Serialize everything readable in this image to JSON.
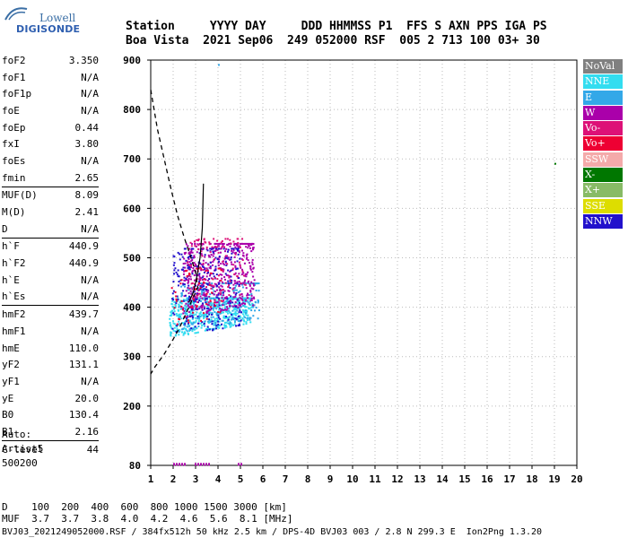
{
  "logo": {
    "line1": "Lowell",
    "line2": "DIGISONDE"
  },
  "header": {
    "line1": "Station     YYYY DAY     DDD HHMMSS P1  FFS S AXN PPS IGA PS",
    "line2": "Boa Vista  2021 Sep06  249 052000 RSF  005 2 713 100 03+ 30"
  },
  "params": [
    {
      "name": "foF2",
      "value": "3.350"
    },
    {
      "name": "foF1",
      "value": "N/A"
    },
    {
      "name": "foF1p",
      "value": "N/A"
    },
    {
      "name": "foE",
      "value": "N/A"
    },
    {
      "name": "foEp",
      "value": "0.44"
    },
    {
      "name": "fxI",
      "value": "3.80"
    },
    {
      "name": "foEs",
      "value": "N/A"
    },
    {
      "name": "fmin",
      "value": "2.65"
    },
    {
      "name": "MUF(D)",
      "value": "8.09",
      "sep": true
    },
    {
      "name": "M(D)",
      "value": "2.41"
    },
    {
      "name": "D",
      "value": "N/A"
    },
    {
      "name": "h`F",
      "value": "440.9",
      "sep": true
    },
    {
      "name": "h`F2",
      "value": "440.9"
    },
    {
      "name": "h`E",
      "value": "N/A"
    },
    {
      "name": "h`Es",
      "value": "N/A"
    },
    {
      "name": "hmF2",
      "value": "439.7",
      "sep": true
    },
    {
      "name": "hmF1",
      "value": "N/A"
    },
    {
      "name": "hmE",
      "value": "110.0"
    },
    {
      "name": "yF2",
      "value": "131.1"
    },
    {
      "name": "yF1",
      "value": "N/A"
    },
    {
      "name": "yE",
      "value": "20.0"
    },
    {
      "name": "B0",
      "value": "130.4"
    },
    {
      "name": "B1",
      "value": "2.16"
    },
    {
      "name": "C-level",
      "value": "44",
      "sep": true
    }
  ],
  "auto": [
    "Auto:",
    "Artist5",
    "500200"
  ],
  "legend": [
    {
      "label": "NoVal",
      "color": "#808080"
    },
    {
      "label": "NNE",
      "color": "#33ddf0"
    },
    {
      "label": "E",
      "color": "#33a8e8"
    },
    {
      "label": "W",
      "color": "#aa00aa"
    },
    {
      "label": "Vo-",
      "color": "#dd1177"
    },
    {
      "label": "Vo+",
      "color": "#ee0033"
    },
    {
      "label": "SSW",
      "color": "#f4aaaa"
    },
    {
      "label": "X-",
      "color": "#007700"
    },
    {
      "label": "X+",
      "color": "#88bb66"
    },
    {
      "label": "SSE",
      "color": "#dddd00"
    },
    {
      "label": "NNW",
      "color": "#2211cc"
    }
  ],
  "footer": {
    "d_row": "D    100  200  400  600  800 1000 1500 3000 [km]",
    "muf_row": "MUF  3.7  3.7  3.8  4.0  4.2  4.6  5.6  8.1 [MHz]",
    "info": "BVJ03_2021249052000.RSF / 384fx512h 50 kHz 2.5 km / DPS-4D BVJ03 003 / 2.8 N 299.3 E  Ion2Png 1.3.20"
  },
  "chart_data": {
    "type": "scatter",
    "title": "",
    "xlabel": "",
    "ylabel": "",
    "xlim": [
      1,
      20
    ],
    "ylim": [
      80,
      900
    ],
    "xticks": [
      1,
      2,
      3,
      4,
      5,
      6,
      7,
      8,
      9,
      10,
      11,
      12,
      13,
      14,
      15,
      16,
      17,
      18,
      19,
      20
    ],
    "yticks": [
      80,
      200,
      300,
      400,
      500,
      600,
      700,
      800,
      900
    ],
    "grid": true,
    "legend_position": "right",
    "dashed_curve": [
      [
        1.0,
        840
      ],
      [
        1.3,
        760
      ],
      [
        1.6,
        700
      ],
      [
        1.9,
        640
      ],
      [
        2.2,
        585
      ],
      [
        2.5,
        540
      ],
      [
        2.8,
        500
      ],
      [
        3.0,
        470
      ],
      [
        3.1,
        440
      ],
      [
        2.9,
        420
      ],
      [
        2.6,
        390
      ],
      [
        2.3,
        360
      ],
      [
        2.0,
        335
      ],
      [
        1.6,
        305
      ],
      [
        1.2,
        280
      ],
      [
        1.0,
        265
      ]
    ],
    "profile_curve": [
      [
        3.35,
        650
      ],
      [
        3.3,
        560
      ],
      [
        3.2,
        500
      ],
      [
        3.05,
        460
      ],
      [
        2.9,
        430
      ],
      [
        2.7,
        410
      ]
    ],
    "isolated_points": [
      {
        "x": 4.0,
        "y": 892,
        "color": "#33a8e8"
      },
      {
        "x": 19.0,
        "y": 692,
        "color": "#007700"
      }
    ],
    "clusters": [
      {
        "name": "NNE",
        "color": "#33ddf0",
        "x": [
          1.8,
          5.5
        ],
        "y": [
          340,
          420
        ],
        "n": 520
      },
      {
        "name": "E",
        "color": "#33a8e8",
        "x": [
          2.2,
          5.8
        ],
        "y": [
          350,
          450
        ],
        "n": 260
      },
      {
        "name": "W",
        "color": "#aa00aa",
        "x": [
          2.4,
          5.6
        ],
        "y": [
          380,
          530
        ],
        "n": 480
      },
      {
        "name": "NNW",
        "color": "#2211cc",
        "x": [
          1.9,
          5.0
        ],
        "y": [
          340,
          520
        ],
        "n": 260
      },
      {
        "name": "Vo-",
        "color": "#dd1177",
        "x": [
          2.6,
          5.2
        ],
        "y": [
          400,
          540
        ],
        "n": 120
      },
      {
        "name": "Vo+",
        "color": "#ee0033",
        "x": [
          1.9,
          4.2
        ],
        "y": [
          360,
          480
        ],
        "n": 60
      }
    ],
    "baseline_marks": {
      "y": 83,
      "x": [
        2.0,
        5.1
      ]
    }
  }
}
